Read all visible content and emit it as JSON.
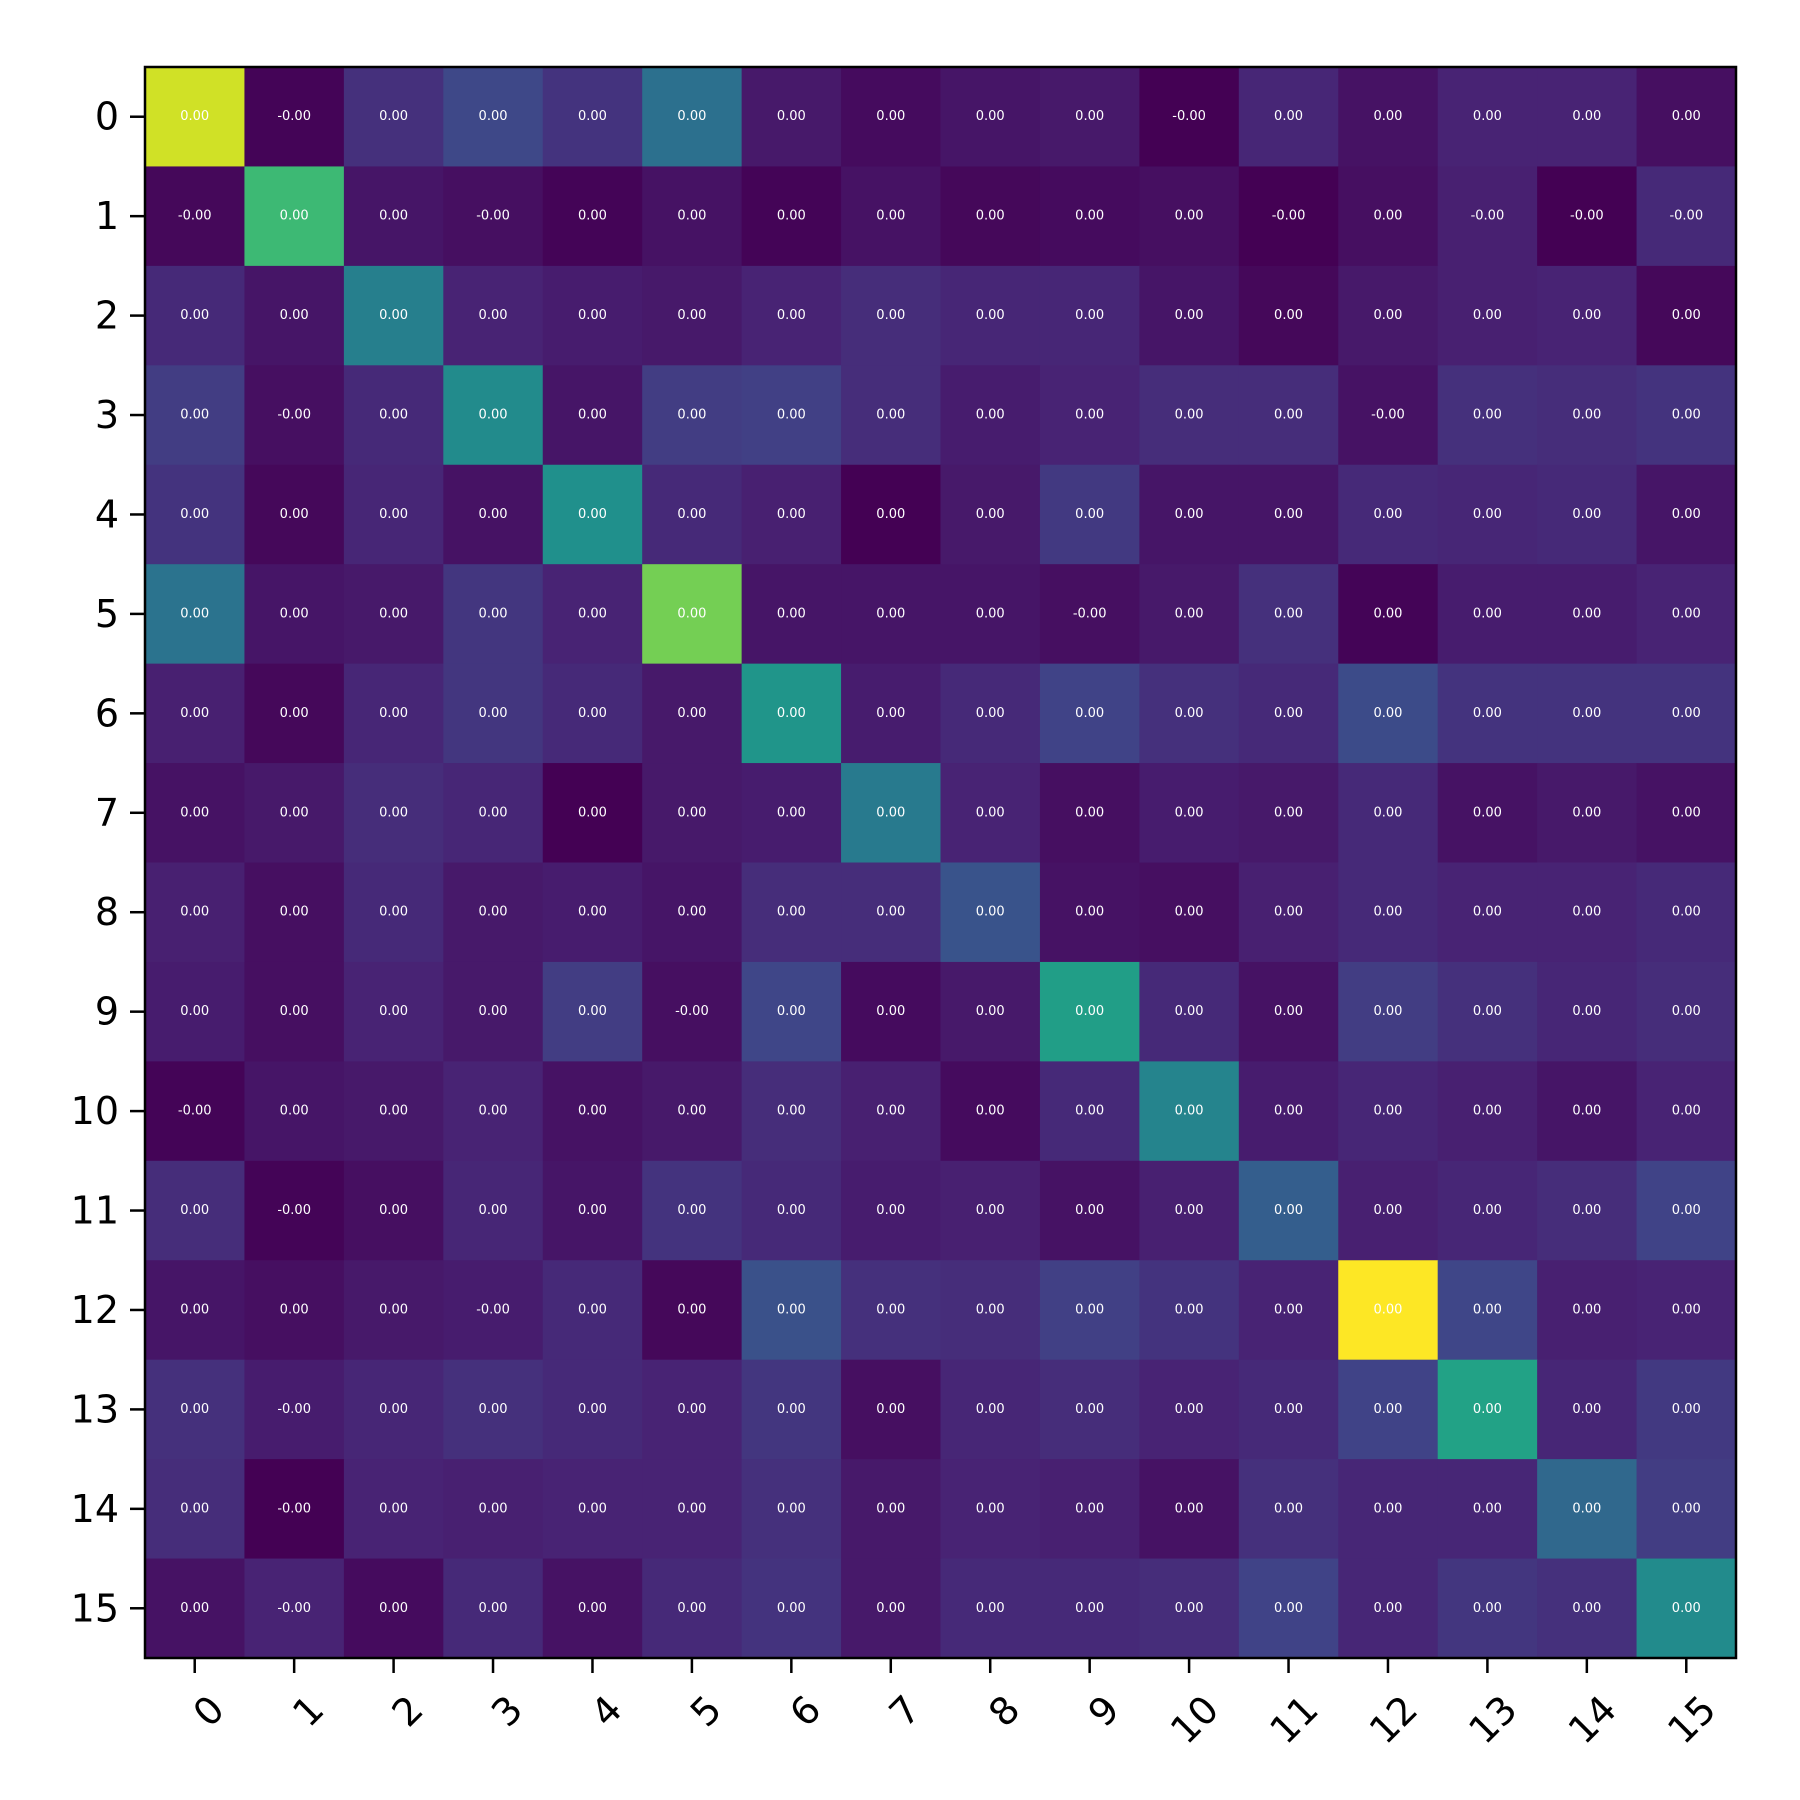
{
  "chart_data": {
    "type": "heatmap",
    "title": "",
    "xlabel": "",
    "ylabel": "",
    "colormap": "viridis",
    "grid": false,
    "legend": "none",
    "x_categories": [
      "0",
      "1",
      "2",
      "3",
      "4",
      "5",
      "6",
      "7",
      "8",
      "9",
      "10",
      "11",
      "12",
      "13",
      "14",
      "15"
    ],
    "y_categories": [
      "0",
      "1",
      "2",
      "3",
      "4",
      "5",
      "6",
      "7",
      "8",
      "9",
      "10",
      "11",
      "12",
      "13",
      "14",
      "15"
    ],
    "color_range": [
      0.0,
      1.0
    ],
    "intensity": [
      [
        0.93,
        0.01,
        0.14,
        0.22,
        0.15,
        0.37,
        0.07,
        0.03,
        0.06,
        0.07,
        0.0,
        0.11,
        0.05,
        0.1,
        0.1,
        0.04
      ],
      [
        0.02,
        0.68,
        0.06,
        0.04,
        0.01,
        0.05,
        0.01,
        0.05,
        0.02,
        0.03,
        0.04,
        0.0,
        0.04,
        0.09,
        0.0,
        0.12
      ],
      [
        0.12,
        0.06,
        0.43,
        0.1,
        0.08,
        0.07,
        0.1,
        0.13,
        0.11,
        0.11,
        0.06,
        0.02,
        0.07,
        0.09,
        0.1,
        0.02
      ],
      [
        0.18,
        0.04,
        0.12,
        0.48,
        0.06,
        0.18,
        0.19,
        0.13,
        0.08,
        0.1,
        0.13,
        0.13,
        0.05,
        0.14,
        0.13,
        0.15
      ],
      [
        0.15,
        0.02,
        0.11,
        0.05,
        0.5,
        0.12,
        0.09,
        0.0,
        0.07,
        0.17,
        0.06,
        0.06,
        0.12,
        0.11,
        0.12,
        0.06
      ],
      [
        0.38,
        0.06,
        0.07,
        0.16,
        0.1,
        0.79,
        0.06,
        0.06,
        0.06,
        0.04,
        0.07,
        0.14,
        0.01,
        0.08,
        0.08,
        0.1
      ],
      [
        0.09,
        0.02,
        0.11,
        0.16,
        0.12,
        0.07,
        0.52,
        0.08,
        0.12,
        0.2,
        0.14,
        0.12,
        0.23,
        0.15,
        0.15,
        0.15
      ],
      [
        0.05,
        0.07,
        0.13,
        0.11,
        0.0,
        0.07,
        0.08,
        0.41,
        0.1,
        0.04,
        0.08,
        0.07,
        0.12,
        0.05,
        0.07,
        0.05
      ],
      [
        0.09,
        0.04,
        0.12,
        0.07,
        0.08,
        0.06,
        0.13,
        0.13,
        0.26,
        0.05,
        0.04,
        0.09,
        0.12,
        0.1,
        0.1,
        0.12
      ],
      [
        0.08,
        0.04,
        0.1,
        0.07,
        0.18,
        0.04,
        0.21,
        0.03,
        0.07,
        0.56,
        0.12,
        0.05,
        0.18,
        0.14,
        0.11,
        0.13
      ],
      [
        0.01,
        0.06,
        0.07,
        0.1,
        0.05,
        0.07,
        0.13,
        0.09,
        0.03,
        0.12,
        0.45,
        0.08,
        0.11,
        0.09,
        0.06,
        0.1
      ],
      [
        0.13,
        0.01,
        0.04,
        0.11,
        0.06,
        0.15,
        0.12,
        0.08,
        0.09,
        0.05,
        0.09,
        0.3,
        0.09,
        0.11,
        0.13,
        0.2
      ],
      [
        0.06,
        0.04,
        0.07,
        0.08,
        0.12,
        0.02,
        0.25,
        0.14,
        0.13,
        0.19,
        0.15,
        0.1,
        1.0,
        0.21,
        0.09,
        0.1
      ],
      [
        0.14,
        0.08,
        0.11,
        0.14,
        0.12,
        0.1,
        0.16,
        0.04,
        0.11,
        0.13,
        0.1,
        0.12,
        0.2,
        0.58,
        0.11,
        0.17
      ],
      [
        0.13,
        0.0,
        0.1,
        0.09,
        0.1,
        0.1,
        0.14,
        0.07,
        0.1,
        0.09,
        0.05,
        0.14,
        0.11,
        0.11,
        0.34,
        0.18
      ],
      [
        0.05,
        0.1,
        0.03,
        0.12,
        0.05,
        0.12,
        0.15,
        0.07,
        0.12,
        0.12,
        0.13,
        0.2,
        0.11,
        0.16,
        0.14,
        0.48
      ]
    ],
    "cell_labels": [
      [
        "0.00",
        "-0.00",
        "0.00",
        "0.00",
        "0.00",
        "0.00",
        "0.00",
        "0.00",
        "0.00",
        "0.00",
        "-0.00",
        "0.00",
        "0.00",
        "0.00",
        "0.00",
        "0.00"
      ],
      [
        "-0.00",
        "0.00",
        "0.00",
        "-0.00",
        "0.00",
        "0.00",
        "0.00",
        "0.00",
        "0.00",
        "0.00",
        "0.00",
        "-0.00",
        "0.00",
        "-0.00",
        "-0.00",
        "-0.00"
      ],
      [
        "0.00",
        "0.00",
        "0.00",
        "0.00",
        "0.00",
        "0.00",
        "0.00",
        "0.00",
        "0.00",
        "0.00",
        "0.00",
        "0.00",
        "0.00",
        "0.00",
        "0.00",
        "0.00"
      ],
      [
        "0.00",
        "-0.00",
        "0.00",
        "0.00",
        "0.00",
        "0.00",
        "0.00",
        "0.00",
        "0.00",
        "0.00",
        "0.00",
        "0.00",
        "-0.00",
        "0.00",
        "0.00",
        "0.00"
      ],
      [
        "0.00",
        "0.00",
        "0.00",
        "0.00",
        "0.00",
        "0.00",
        "0.00",
        "0.00",
        "0.00",
        "0.00",
        "0.00",
        "0.00",
        "0.00",
        "0.00",
        "0.00",
        "0.00"
      ],
      [
        "0.00",
        "0.00",
        "0.00",
        "0.00",
        "0.00",
        "0.00",
        "0.00",
        "0.00",
        "0.00",
        "-0.00",
        "0.00",
        "0.00",
        "0.00",
        "0.00",
        "0.00",
        "0.00"
      ],
      [
        "0.00",
        "0.00",
        "0.00",
        "0.00",
        "0.00",
        "0.00",
        "0.00",
        "0.00",
        "0.00",
        "0.00",
        "0.00",
        "0.00",
        "0.00",
        "0.00",
        "0.00",
        "0.00"
      ],
      [
        "0.00",
        "0.00",
        "0.00",
        "0.00",
        "0.00",
        "0.00",
        "0.00",
        "0.00",
        "0.00",
        "0.00",
        "0.00",
        "0.00",
        "0.00",
        "0.00",
        "0.00",
        "0.00"
      ],
      [
        "0.00",
        "0.00",
        "0.00",
        "0.00",
        "0.00",
        "0.00",
        "0.00",
        "0.00",
        "0.00",
        "0.00",
        "0.00",
        "0.00",
        "0.00",
        "0.00",
        "0.00",
        "0.00"
      ],
      [
        "0.00",
        "0.00",
        "0.00",
        "0.00",
        "0.00",
        "-0.00",
        "0.00",
        "0.00",
        "0.00",
        "0.00",
        "0.00",
        "0.00",
        "0.00",
        "0.00",
        "0.00",
        "0.00"
      ],
      [
        "-0.00",
        "0.00",
        "0.00",
        "0.00",
        "0.00",
        "0.00",
        "0.00",
        "0.00",
        "0.00",
        "0.00",
        "0.00",
        "0.00",
        "0.00",
        "0.00",
        "0.00",
        "0.00"
      ],
      [
        "0.00",
        "-0.00",
        "0.00",
        "0.00",
        "0.00",
        "0.00",
        "0.00",
        "0.00",
        "0.00",
        "0.00",
        "0.00",
        "0.00",
        "0.00",
        "0.00",
        "0.00",
        "0.00"
      ],
      [
        "0.00",
        "0.00",
        "0.00",
        "-0.00",
        "0.00",
        "0.00",
        "0.00",
        "0.00",
        "0.00",
        "0.00",
        "0.00",
        "0.00",
        "0.00",
        "0.00",
        "0.00",
        "0.00"
      ],
      [
        "0.00",
        "-0.00",
        "0.00",
        "0.00",
        "0.00",
        "0.00",
        "0.00",
        "0.00",
        "0.00",
        "0.00",
        "0.00",
        "0.00",
        "0.00",
        "0.00",
        "0.00",
        "0.00"
      ],
      [
        "0.00",
        "-0.00",
        "0.00",
        "0.00",
        "0.00",
        "0.00",
        "0.00",
        "0.00",
        "0.00",
        "0.00",
        "0.00",
        "0.00",
        "0.00",
        "0.00",
        "0.00",
        "0.00"
      ],
      [
        "0.00",
        "-0.00",
        "0.00",
        "0.00",
        "0.00",
        "0.00",
        "0.00",
        "0.00",
        "0.00",
        "0.00",
        "0.00",
        "0.00",
        "0.00",
        "0.00",
        "0.00",
        "0.00"
      ]
    ]
  }
}
